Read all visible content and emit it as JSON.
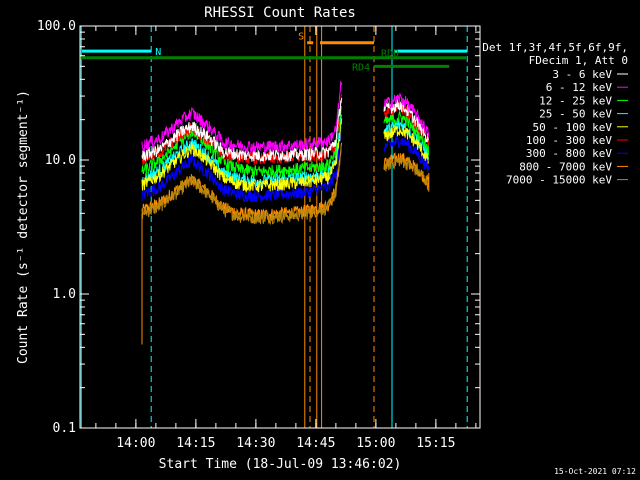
{
  "chart_data": {
    "type": "line",
    "title": "RHESSI Count Rates",
    "xlabel": "Start Time (18-Jul-09 13:46:02)",
    "ylabel": "Count Rate (s⁻¹ detector segment⁻¹)",
    "yscale": "log",
    "ylim": [
      0.1,
      100
    ],
    "xlim_minutes_after_start": [
      0,
      100
    ],
    "x_tick_labels": [
      "14:00",
      "14:15",
      "14:30",
      "14:45",
      "15:00",
      "15:15"
    ],
    "x_tick_minutes": [
      13.97,
      28.97,
      43.97,
      58.97,
      73.97,
      88.97
    ],
    "y_tick_labels": [
      "100.0",
      "10.0",
      "1.0",
      "0.1"
    ],
    "y_tick_values": [
      100,
      10,
      1,
      0.1
    ],
    "legend_header": [
      "Det 1f,3f,4f,5f,6f,9f,",
      "FDecim 1, Att 0"
    ],
    "legend_position": "right",
    "grid": false,
    "series": [
      {
        "name": "3 - 6 keV",
        "color": "#ffffff",
        "values": [
          [
            15.5,
            10.8
          ],
          [
            20,
            12
          ],
          [
            25,
            16
          ],
          [
            28,
            18
          ],
          [
            32,
            15
          ],
          [
            36,
            11.5
          ],
          [
            40,
            11
          ],
          [
            45,
            10.8
          ],
          [
            50,
            11
          ],
          [
            55,
            11
          ],
          [
            58,
            11.2
          ],
          [
            62,
            11.5
          ],
          [
            64,
            14
          ],
          [
            65.5,
            32
          ],
          [
            76,
            24
          ],
          [
            80,
            26
          ],
          [
            81.5,
            24
          ],
          [
            84.5,
            19
          ],
          [
            86.5,
            15
          ],
          [
            87.2,
            14
          ]
        ]
      },
      {
        "name": "6 - 12 keV",
        "color": "#ff00ff",
        "values": [
          [
            15.5,
            12.8
          ],
          [
            20,
            14.5
          ],
          [
            25,
            19.5
          ],
          [
            28,
            22.5
          ],
          [
            32,
            18
          ],
          [
            36,
            13.5
          ],
          [
            40,
            12.8
          ],
          [
            45,
            12.5
          ],
          [
            50,
            12.8
          ],
          [
            55,
            13
          ],
          [
            58,
            13.3
          ],
          [
            62,
            13.8
          ],
          [
            64,
            17
          ],
          [
            65.5,
            42
          ],
          [
            76,
            26
          ],
          [
            80,
            29
          ],
          [
            81.5,
            27
          ],
          [
            84.5,
            21
          ],
          [
            86.5,
            17
          ],
          [
            87.2,
            15.5
          ]
        ]
      },
      {
        "name": "12 - 25 keV",
        "color": "#00ff00",
        "values": [
          [
            15.5,
            8.2
          ],
          [
            20,
            10
          ],
          [
            25,
            13.8
          ],
          [
            28,
            16.5
          ],
          [
            32,
            13
          ],
          [
            36,
            9.5
          ],
          [
            40,
            8.5
          ],
          [
            45,
            8.2
          ],
          [
            50,
            8.4
          ],
          [
            55,
            8.6
          ],
          [
            58,
            8.8
          ],
          [
            62,
            9.2
          ],
          [
            64,
            12
          ],
          [
            65.5,
            27
          ],
          [
            76,
            19
          ],
          [
            80,
            21
          ],
          [
            81.5,
            20
          ],
          [
            84.5,
            16
          ],
          [
            86.5,
            13
          ],
          [
            87.2,
            12
          ]
        ]
      },
      {
        "name": "25 - 50 keV",
        "color": "#00ffff",
        "values": [
          [
            15.5,
            7
          ],
          [
            20,
            8.5
          ],
          [
            25,
            11.5
          ],
          [
            28,
            13.5
          ],
          [
            32,
            10.8
          ],
          [
            36,
            8
          ],
          [
            40,
            7.2
          ],
          [
            45,
            7
          ],
          [
            50,
            7.2
          ],
          [
            55,
            7.4
          ],
          [
            58,
            7.6
          ],
          [
            62,
            8
          ],
          [
            64,
            10
          ],
          [
            65.5,
            23
          ],
          [
            76,
            16.5
          ],
          [
            80,
            18.5
          ],
          [
            81.5,
            17.5
          ],
          [
            84.5,
            14
          ],
          [
            86.5,
            11.5
          ],
          [
            87.2,
            10.5
          ]
        ]
      },
      {
        "name": "50 - 100 keV",
        "color": "#ffff00",
        "values": [
          [
            15.5,
            6.5
          ],
          [
            20,
            7.8
          ],
          [
            25,
            10.5
          ],
          [
            28,
            12.3
          ],
          [
            32,
            9.8
          ],
          [
            36,
            7.3
          ],
          [
            40,
            6.6
          ],
          [
            45,
            6.4
          ],
          [
            50,
            6.6
          ],
          [
            55,
            6.8
          ],
          [
            58,
            7
          ],
          [
            62,
            7.4
          ],
          [
            64,
            9.2
          ],
          [
            65.5,
            21
          ],
          [
            76,
            15
          ],
          [
            80,
            17
          ],
          [
            81.5,
            16
          ],
          [
            84.5,
            13
          ],
          [
            86.5,
            10.6
          ],
          [
            87.2,
            9.8
          ]
        ]
      },
      {
        "name": "100 - 300 keV",
        "color": "#ff0000",
        "values": [
          [
            15.5,
            10.2
          ],
          [
            20,
            11.5
          ],
          [
            25,
            15.2
          ],
          [
            28,
            17.5
          ],
          [
            32,
            14.3
          ],
          [
            36,
            11
          ],
          [
            40,
            10.5
          ],
          [
            45,
            10.3
          ],
          [
            50,
            10.5
          ],
          [
            55,
            10.6
          ],
          [
            58,
            10.8
          ],
          [
            62,
            11.2
          ],
          [
            64,
            13.5
          ],
          [
            65.5,
            30
          ],
          [
            76,
            23
          ],
          [
            80,
            25
          ],
          [
            81.5,
            23
          ],
          [
            84.5,
            18
          ],
          [
            86.5,
            14.5
          ],
          [
            87.2,
            13.5
          ]
        ]
      },
      {
        "name": "300 - 800 keV",
        "color": "#0000ff",
        "values": [
          [
            15.5,
            5.5
          ],
          [
            20,
            6.3
          ],
          [
            25,
            8.5
          ],
          [
            28,
            10
          ],
          [
            32,
            8
          ],
          [
            36,
            6
          ],
          [
            40,
            5.5
          ],
          [
            45,
            5.4
          ],
          [
            50,
            5.6
          ],
          [
            55,
            5.7
          ],
          [
            58,
            5.9
          ],
          [
            62,
            6.3
          ],
          [
            64,
            8
          ],
          [
            65.5,
            18
          ],
          [
            76,
            12.5
          ],
          [
            80,
            14
          ],
          [
            81.5,
            13.5
          ],
          [
            84.5,
            11
          ],
          [
            86.5,
            9.2
          ],
          [
            87.2,
            8.6
          ]
        ]
      },
      {
        "name": "800 - 7000 keV",
        "color": "#ff8c00",
        "values": [
          [
            15.5,
            4.2
          ],
          [
            20,
            4.8
          ],
          [
            25,
            6.3
          ],
          [
            28,
            7.2
          ],
          [
            32,
            5.8
          ],
          [
            36,
            4.4
          ],
          [
            40,
            4
          ],
          [
            45,
            3.9
          ],
          [
            50,
            4
          ],
          [
            55,
            4.1
          ],
          [
            58,
            4.3
          ],
          [
            62,
            4.6
          ],
          [
            64,
            6
          ],
          [
            65.5,
            14
          ],
          [
            76,
            9.5
          ],
          [
            80,
            10.5
          ],
          [
            81.5,
            10
          ],
          [
            84.5,
            8.5
          ],
          [
            86.5,
            7.2
          ],
          [
            87.2,
            6.8
          ]
        ]
      },
      {
        "name": "7000 - 15000 keV",
        "color": "#b8860b",
        "values": [
          [
            15.5,
            4
          ],
          [
            20,
            4.5
          ],
          [
            25,
            6
          ],
          [
            28,
            7
          ],
          [
            32,
            5.6
          ],
          [
            36,
            4.2
          ],
          [
            40,
            3.8
          ],
          [
            45,
            3.7
          ],
          [
            50,
            3.8
          ],
          [
            55,
            3.9
          ],
          [
            58,
            4.1
          ],
          [
            62,
            4.4
          ],
          [
            64,
            5.8
          ],
          [
            65.5,
            13
          ],
          [
            76,
            9
          ],
          [
            80,
            10
          ],
          [
            81.5,
            9.5
          ],
          [
            84.5,
            8.2
          ],
          [
            86.5,
            7
          ],
          [
            87.2,
            6.5
          ]
        ]
      }
    ],
    "intervals": [
      {
        "label": "N",
        "color": "#00ffff",
        "y": 65,
        "start": 0.5,
        "end": 17.8
      },
      {
        "label": "",
        "color": "#00ffff",
        "y": 65,
        "start": 78.5,
        "end": 96.8
      },
      {
        "label": "RD0",
        "color": "#008000",
        "y": 58,
        "start": 0,
        "end": 96.5
      },
      {
        "label": "RD4",
        "color": "#008000",
        "y": 50,
        "start": 73.5,
        "end": 92.3
      },
      {
        "label": "S",
        "color": "#ff8c00",
        "y": 75,
        "start": 56.8,
        "end": 58.3
      },
      {
        "label": "",
        "color": "#ff8c00",
        "y": 75,
        "start": 60,
        "end": 73.5
      }
    ],
    "vlines": [
      {
        "x": 0.3,
        "color": "#00ffff",
        "style": "solid"
      },
      {
        "x": 17.8,
        "color": "#00ffff",
        "style": "dashed"
      },
      {
        "x": 56.2,
        "color": "#ff8c00",
        "style": "solid"
      },
      {
        "x": 57.5,
        "color": "#ff8c00",
        "style": "dashed"
      },
      {
        "x": 59.2,
        "color": "#ff8c00",
        "style": "solid"
      },
      {
        "x": 60.4,
        "color": "#ff8c00",
        "style": "solid"
      },
      {
        "x": 73.5,
        "color": "#ff8c00",
        "style": "dashed"
      },
      {
        "x": 78.0,
        "color": "#00ffff",
        "style": "solid"
      },
      {
        "x": 96.8,
        "color": "#00ffff",
        "style": "dashed"
      }
    ]
  },
  "footer": {
    "timestamp": "15-Oct-2021 07:12"
  }
}
